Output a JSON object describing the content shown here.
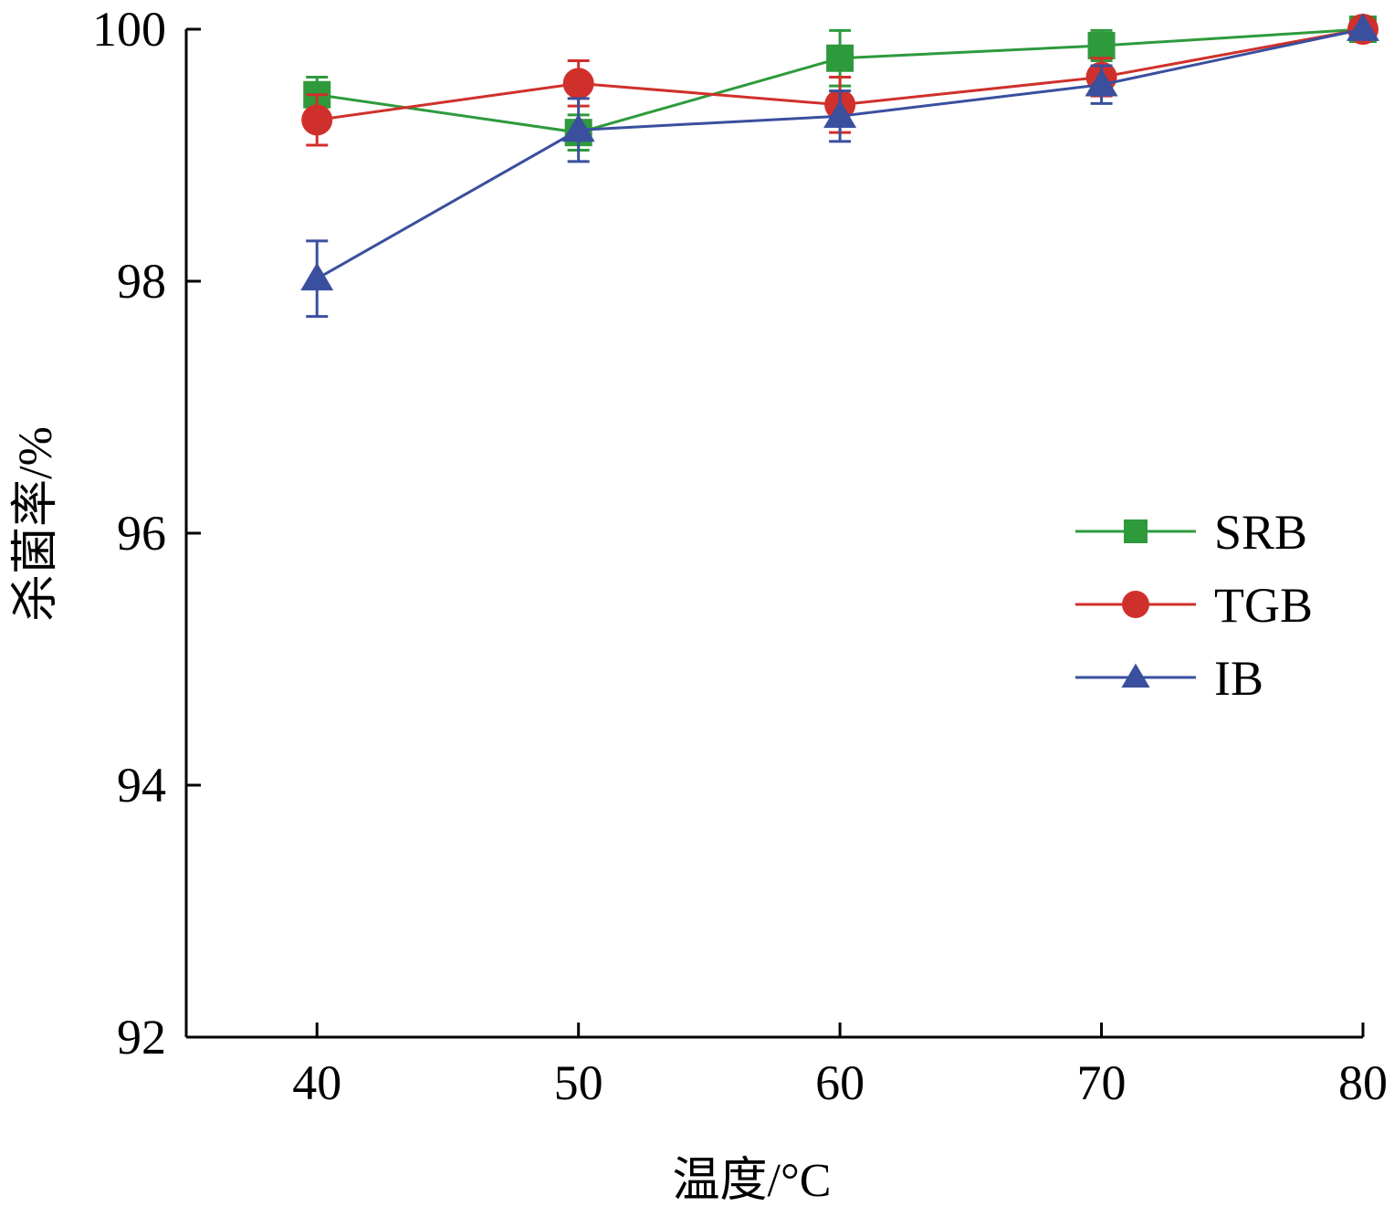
{
  "chart_data": {
    "type": "line",
    "xlabel": "温度/°C",
    "ylabel": "杀菌率/%",
    "x": [
      40,
      50,
      60,
      70,
      80
    ],
    "xlim": [
      35,
      80
    ],
    "xticks": [
      40,
      50,
      60,
      70,
      80
    ],
    "ylim": [
      92,
      100
    ],
    "yticks": [
      92,
      94,
      96,
      98,
      100
    ],
    "grid": false,
    "legend_position": "right",
    "series": [
      {
        "name": "SRB",
        "color": "#2e9a3c",
        "marker": "square",
        "values": [
          99.48,
          99.18,
          99.77,
          99.87,
          100.0
        ],
        "errors": [
          0.14,
          0.14,
          0.22,
          0.12,
          0.0
        ]
      },
      {
        "name": "TGB",
        "color": "#d0302b",
        "marker": "circle",
        "values": [
          99.28,
          99.57,
          99.4,
          99.62,
          100.0
        ],
        "errors": [
          0.2,
          0.18,
          0.22,
          0.15,
          0.0
        ]
      },
      {
        "name": "IB",
        "color": "#3a4f9e",
        "marker": "triangle",
        "values": [
          98.02,
          99.2,
          99.31,
          99.56,
          100.0
        ],
        "errors": [
          0.3,
          0.25,
          0.2,
          0.15,
          0.0
        ]
      }
    ]
  }
}
